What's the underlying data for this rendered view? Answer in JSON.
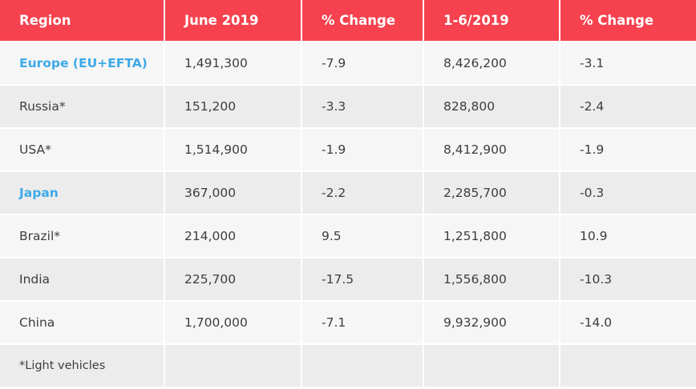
{
  "table": {
    "headers": [
      "Region",
      "June 2019",
      "% Change",
      "1-6/2019",
      "% Change"
    ],
    "rows": [
      {
        "region": "Europe (EU+EFTA)",
        "june_2019": "1,491,300",
        "june_change": "-7.9",
        "ytd_2019": "8,426,200",
        "ytd_change": "-3.1",
        "highlight": true
      },
      {
        "region": "Russia*",
        "june_2019": "151,200",
        "june_change": "-3.3",
        "ytd_2019": "828,800",
        "ytd_change": "-2.4",
        "highlight": false
      },
      {
        "region": "USA*",
        "june_2019": "1,514,900",
        "june_change": "-1.9",
        "ytd_2019": "8,412,900",
        "ytd_change": "-1.9",
        "highlight": false
      },
      {
        "region": "Japan",
        "june_2019": "367,000",
        "june_change": "-2.2",
        "ytd_2019": "2,285,700",
        "ytd_change": "-0.3",
        "highlight": true
      },
      {
        "region": "Brazil*",
        "june_2019": "214,000",
        "june_change": "9.5",
        "ytd_2019": "1,251,800",
        "ytd_change": "10.9",
        "highlight": false
      },
      {
        "region": "India",
        "june_2019": "225,700",
        "june_change": "-17.5",
        "ytd_2019": "1,556,800",
        "ytd_change": "-10.3",
        "highlight": false
      },
      {
        "region": "China",
        "june_2019": "1,700,000",
        "june_change": "-7.1",
        "ytd_2019": "9,932,900",
        "ytd_change": "-14.0",
        "highlight": false
      }
    ],
    "footnote": "*Light vehicles"
  },
  "colors": {
    "header_bg": "#f5424e",
    "header_text": "#ffffff",
    "highlight_text": "#3ea9e8",
    "row_light": "#f6f6f6",
    "row_dark": "#ececec"
  }
}
